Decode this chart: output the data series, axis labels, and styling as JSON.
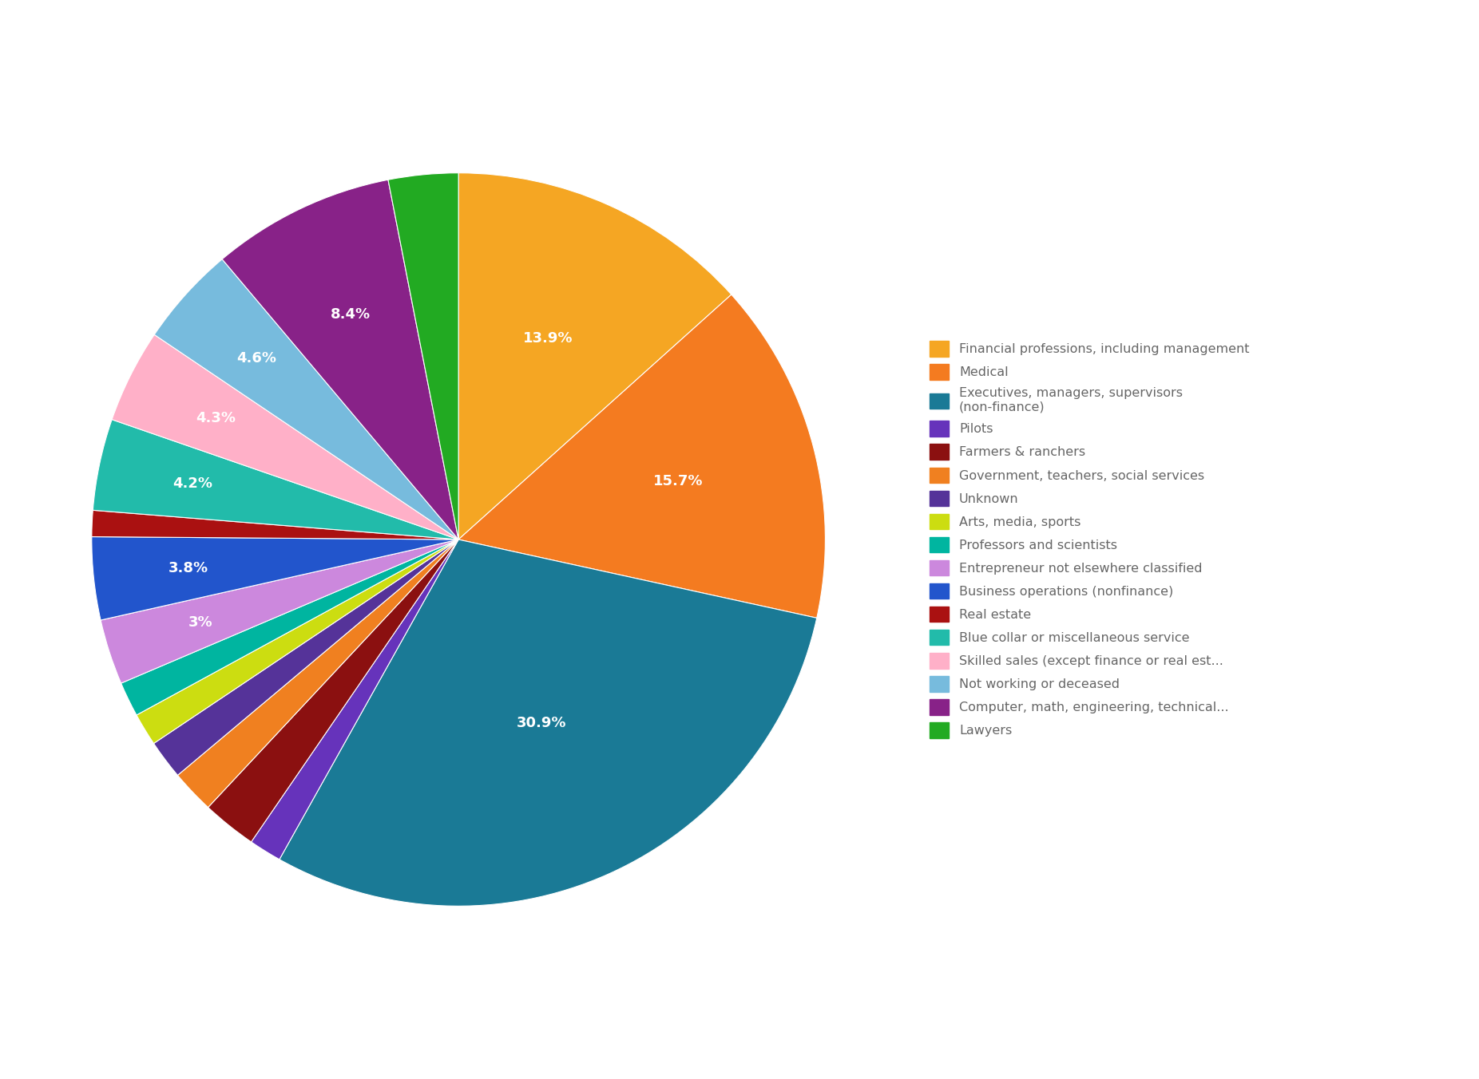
{
  "labels": [
    "Financial professions, including management",
    "Medical",
    "Executives, managers, supervisors\n(non-finance)",
    "Pilots",
    "Farmers & ranchers",
    "Government, teachers, social services",
    "Unknown",
    "Arts, media, sports",
    "Professors and scientists",
    "Entrepreneur not elsewhere classified",
    "Business operations (nonfinance)",
    "Real estate",
    "Blue collar or miscellaneous service",
    "Skilled sales (except finance or real est...",
    "Not working or deceased",
    "Computer, math, engineering, technical...",
    "Lawyers"
  ],
  "legend_labels": [
    "Financial professions, including management",
    "Medical",
    "Executives, managers, supervisors\n(non-finance)",
    "Pilots",
    "Farmers & ranchers",
    "Government, teachers, social services",
    "Unknown",
    "Arts, media, sports",
    "Professors and scientists",
    "Entrepreneur not elsewhere classified",
    "Business operations (nonfinance)",
    "Real estate",
    "Blue collar or miscellaneous service",
    "Skilled sales (except finance or real est...",
    "Not working or deceased",
    "Computer, math, engineering, technical...",
    "Lawyers"
  ],
  "values": [
    13.9,
    15.7,
    30.9,
    1.5,
    2.5,
    2.0,
    1.8,
    1.5,
    1.6,
    3.0,
    3.8,
    1.2,
    4.2,
    4.3,
    4.6,
    8.4,
    3.2
  ],
  "colors": [
    "#F5A623",
    "#F47B20",
    "#1A7A96",
    "#6633BB",
    "#8B1010",
    "#F08020",
    "#553399",
    "#CCDD11",
    "#00B5A0",
    "#CC88DD",
    "#2255CC",
    "#AA1111",
    "#22BBAA",
    "#FFB0C8",
    "#77BBDD",
    "#882288",
    "#22AA22"
  ],
  "autopct_labels": [
    "13.9%",
    "15.7%",
    "30.9%",
    "",
    "",
    "",
    "",
    "",
    "",
    "3%",
    "3.8%",
    "",
    "4.2%",
    "4.3%",
    "4.6%",
    "8.4%",
    ""
  ],
  "background_color": "#FFFFFF",
  "figsize": [
    18.52,
    13.52
  ],
  "dpi": 100
}
